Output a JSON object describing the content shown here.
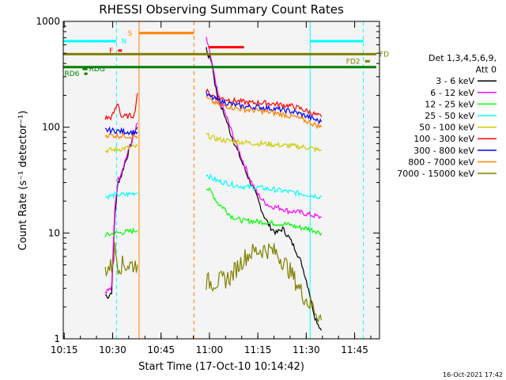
{
  "chart_data": {
    "type": "line",
    "title": "RHESSI Observing Summary Count Rates",
    "xlabel": "Start Time (17-Oct-10 10:14:42)",
    "ylabel": "Count Rate (s⁻¹ detector⁻¹)",
    "x_range_minutes": [
      0,
      98
    ],
    "x_tick_labels": [
      "10:15",
      "10:30",
      "10:45",
      "11:00",
      "11:15",
      "11:30",
      "11:45"
    ],
    "x_tick_minutes": [
      0.3,
      15.3,
      30.3,
      45.3,
      60.3,
      75.3,
      90.3
    ],
    "ylim": [
      1,
      1000
    ],
    "yscale": "log",
    "y_tick_labels": [
      "1",
      "10",
      "100",
      "1000"
    ],
    "legend_header": [
      "Det 1,3,4,5,6,9,",
      "Att 0"
    ],
    "legend_position": "right",
    "series": [
      {
        "name": "3 - 6 keV",
        "color": "#000000",
        "segments": [
          [
            [
              13,
              2.6
            ],
            [
              14,
              2.5
            ],
            [
              15,
              2.8
            ],
            [
              16,
              15
            ],
            [
              17,
              30
            ],
            [
              18,
              35
            ],
            [
              19,
              45
            ],
            [
              20,
              55
            ],
            [
              21,
              70
            ],
            [
              22,
              90
            ],
            [
              23,
              100
            ]
          ],
          [
            [
              44.3,
              560
            ],
            [
              45,
              470
            ],
            [
              46,
              420
            ],
            [
              47,
              260
            ],
            [
              48,
              180
            ],
            [
              50,
              130
            ],
            [
              52,
              85
            ],
            [
              54,
              60
            ],
            [
              56,
              42
            ],
            [
              58,
              30
            ],
            [
              60,
              22
            ],
            [
              62,
              15
            ],
            [
              64,
              11.5
            ],
            [
              66,
              10
            ],
            [
              68,
              11
            ],
            [
              70,
              9
            ],
            [
              72,
              7
            ],
            [
              74,
              5
            ],
            [
              76,
              3
            ],
            [
              78,
              1.6
            ],
            [
              80,
              1.2
            ]
          ]
        ]
      },
      {
        "name": "6 - 12 keV",
        "color": "#ff00ff",
        "segments": [
          [
            [
              13,
              2.8
            ],
            [
              15,
              3
            ],
            [
              16,
              18
            ],
            [
              17,
              32
            ],
            [
              18,
              38
            ],
            [
              20,
              58
            ],
            [
              22,
              85
            ],
            [
              23,
              110
            ]
          ],
          [
            [
              44.3,
              700
            ],
            [
              45,
              560
            ],
            [
              46,
              420
            ],
            [
              47,
              280
            ],
            [
              48,
              200
            ],
            [
              50,
              140
            ],
            [
              52,
              95
            ],
            [
              54,
              65
            ],
            [
              56,
              45
            ],
            [
              58,
              32
            ],
            [
              60,
              24
            ],
            [
              62,
              20
            ],
            [
              64,
              18
            ],
            [
              66,
              17.5
            ],
            [
              68,
              17
            ],
            [
              70,
              16
            ],
            [
              72,
              16
            ],
            [
              74,
              15.5
            ],
            [
              76,
              15
            ],
            [
              78,
              14.5
            ],
            [
              80,
              14
            ]
          ]
        ]
      },
      {
        "name": "12 - 25 keV",
        "color": "#00ff00",
        "segments": [
          [
            [
              13,
              9.5
            ],
            [
              15,
              9.8
            ],
            [
              17,
              10
            ],
            [
              19,
              10.2
            ],
            [
              21,
              10.4
            ],
            [
              23,
              10.6
            ]
          ],
          [
            [
              44.3,
              27
            ],
            [
              46,
              24
            ],
            [
              48,
              19
            ],
            [
              50,
              17
            ],
            [
              52,
              14.5
            ],
            [
              54,
              13.5
            ],
            [
              56,
              13
            ],
            [
              58,
              13
            ],
            [
              60,
              12.8
            ],
            [
              62,
              12.7
            ],
            [
              64,
              12.5
            ],
            [
              66,
              12.3
            ],
            [
              68,
              12.2
            ],
            [
              70,
              12
            ],
            [
              72,
              11.5
            ],
            [
              74,
              11.2
            ],
            [
              76,
              11
            ],
            [
              78,
              10.5
            ],
            [
              80,
              10
            ]
          ]
        ]
      },
      {
        "name": "25 - 50 keV",
        "color": "#00ffff",
        "segments": [
          [
            [
              13,
              22
            ],
            [
              15,
              22.5
            ],
            [
              17,
              23
            ],
            [
              19,
              23
            ],
            [
              21,
              23.5
            ],
            [
              23,
              24
            ]
          ],
          [
            [
              44.3,
              36
            ],
            [
              46,
              33
            ],
            [
              48,
              31
            ],
            [
              50,
              30
            ],
            [
              52,
              29
            ],
            [
              54,
              28
            ],
            [
              56,
              27.5
            ],
            [
              58,
              27
            ],
            [
              60,
              27
            ],
            [
              62,
              26.5
            ],
            [
              64,
              26
            ],
            [
              66,
              25.5
            ],
            [
              68,
              25
            ],
            [
              70,
              24.5
            ],
            [
              72,
              24
            ],
            [
              74,
              23.5
            ],
            [
              76,
              23
            ],
            [
              78,
              22.5
            ],
            [
              80,
              22
            ]
          ]
        ]
      },
      {
        "name": "50 - 100 keV",
        "color": "#cccc00",
        "segments": [
          [
            [
              13,
              60
            ],
            [
              15,
              61
            ],
            [
              17,
              62
            ],
            [
              19,
              63
            ],
            [
              21,
              64
            ],
            [
              23,
              66
            ]
          ],
          [
            [
              44.3,
              85
            ],
            [
              46,
              80
            ],
            [
              48,
              77
            ],
            [
              50,
              75
            ],
            [
              52,
              74
            ],
            [
              54,
              73
            ],
            [
              56,
              72
            ],
            [
              58,
              71
            ],
            [
              60,
              70
            ],
            [
              62,
              70
            ],
            [
              64,
              69
            ],
            [
              66,
              68
            ],
            [
              68,
              67
            ],
            [
              70,
              67
            ],
            [
              72,
              66
            ],
            [
              74,
              65
            ],
            [
              76,
              64
            ],
            [
              78,
              62
            ],
            [
              80,
              60
            ]
          ]
        ]
      },
      {
        "name": "100 - 300 keV",
        "color": "#ff0000",
        "segments": [
          [
            [
              13,
              122
            ],
            [
              15,
              124
            ],
            [
              17,
              170
            ],
            [
              18,
              125
            ],
            [
              20,
              127
            ],
            [
              22,
              130
            ],
            [
              23,
              210
            ]
          ],
          [
            [
              44.3,
              220
            ],
            [
              46,
              200
            ],
            [
              48,
              190
            ],
            [
              50,
              185
            ],
            [
              52,
              180
            ],
            [
              54,
              176
            ],
            [
              56,
              173
            ],
            [
              58,
              170
            ],
            [
              60,
              170
            ],
            [
              62,
              170
            ],
            [
              64,
              168
            ],
            [
              66,
              165
            ],
            [
              68,
              162
            ],
            [
              70,
              160
            ],
            [
              72,
              155
            ],
            [
              74,
              148
            ],
            [
              76,
              140
            ],
            [
              78,
              132
            ],
            [
              80,
              125
            ]
          ]
        ]
      },
      {
        "name": "300 - 800 keV",
        "color": "#0000ff",
        "segments": [
          [
            [
              13,
              94
            ],
            [
              15,
              93
            ],
            [
              17,
              92
            ],
            [
              19,
              91
            ],
            [
              21,
              90
            ],
            [
              23,
              90
            ]
          ],
          [
            [
              44.3,
              205
            ],
            [
              46,
              190
            ],
            [
              48,
              180
            ],
            [
              50,
              172
            ],
            [
              52,
              165
            ],
            [
              54,
              160
            ],
            [
              56,
              157
            ],
            [
              58,
              155
            ],
            [
              60,
              155
            ],
            [
              62,
              153
            ],
            [
              64,
              151
            ],
            [
              66,
              148
            ],
            [
              68,
              145
            ],
            [
              70,
              142
            ],
            [
              72,
              138
            ],
            [
              74,
              132
            ],
            [
              76,
              125
            ],
            [
              78,
              118
            ],
            [
              80,
              112
            ]
          ]
        ]
      },
      {
        "name": "800 - 7000 keV",
        "color": "#ff8000",
        "segments": [
          [
            [
              13,
              84
            ],
            [
              15,
              84
            ],
            [
              17,
              83
            ],
            [
              19,
              83
            ],
            [
              21,
              82
            ],
            [
              23,
              82
            ]
          ],
          [
            [
              44.3,
              190
            ],
            [
              46,
              175
            ],
            [
              48,
              165
            ],
            [
              50,
              160
            ],
            [
              52,
              155
            ],
            [
              54,
              150
            ],
            [
              56,
              147
            ],
            [
              58,
              145
            ],
            [
              60,
              143
            ],
            [
              62,
              141
            ],
            [
              64,
              138
            ],
            [
              66,
              135
            ],
            [
              68,
              132
            ],
            [
              70,
              128
            ],
            [
              72,
              124
            ],
            [
              74,
              118
            ],
            [
              76,
              112
            ],
            [
              78,
              106
            ],
            [
              80,
              100
            ]
          ]
        ]
      },
      {
        "name": "7000 - 15000 keV",
        "color": "#808000",
        "segments": [
          [
            [
              13,
              4.6
            ],
            [
              15,
              4.8
            ],
            [
              16,
              7
            ],
            [
              17,
              5
            ],
            [
              19,
              5
            ],
            [
              21,
              5
            ],
            [
              23,
              5
            ]
          ],
          [
            [
              44.3,
              3.5
            ],
            [
              46,
              3.4
            ],
            [
              48,
              3.5
            ],
            [
              50,
              3.6
            ],
            [
              52,
              3.9
            ],
            [
              54,
              4.8
            ],
            [
              56,
              5.8
            ],
            [
              58,
              6.5
            ],
            [
              60,
              6.8
            ],
            [
              62,
              7
            ],
            [
              64,
              6.9
            ],
            [
              66,
              6.5
            ],
            [
              68,
              5.5
            ],
            [
              70,
              4.5
            ],
            [
              72,
              3.5
            ],
            [
              74,
              2.7
            ],
            [
              76,
              2.2
            ],
            [
              78,
              1.9
            ],
            [
              80,
              1.5
            ]
          ]
        ]
      }
    ],
    "vertical_markers": [
      {
        "minute": 0,
        "color": "#00ffff",
        "style": "solid"
      },
      {
        "minute": 16.5,
        "color": "#00ffff",
        "style": "dashed"
      },
      {
        "minute": 23.5,
        "color": "#ff8000",
        "style": "solid"
      },
      {
        "minute": 40.5,
        "color": "#ff8000",
        "style": "dashed"
      },
      {
        "minute": 76.5,
        "color": "#00ffff",
        "style": "solid"
      },
      {
        "minute": 93,
        "color": "#00ffff",
        "style": "dashed"
      }
    ],
    "flag_bars": [
      {
        "label": "N",
        "color": "#00ffff",
        "x0": 0,
        "x1": 16.5,
        "y": 650,
        "label_at": 18,
        "label_side": "right"
      },
      {
        "label": "",
        "color": "#00ffff",
        "x0": 76.5,
        "x1": 93,
        "y": 650,
        "label_at": null,
        "label_side": ""
      },
      {
        "label": "S",
        "color": "#ff8000",
        "x0": 23.5,
        "x1": 40.5,
        "y": 775,
        "label_at": 20,
        "label_side": "right"
      },
      {
        "label": "F",
        "color": "#ff0000",
        "x0": 17,
        "x1": 18.2,
        "y": 530,
        "label_at": 15.5,
        "label_side": "left"
      },
      {
        "label": "",
        "color": "#ff0000",
        "x0": 45,
        "x1": 56,
        "y": 570,
        "label_at": null,
        "label_side": ""
      },
      {
        "label": "FD",
        "color": "#808000",
        "x0": 0,
        "x1": 97,
        "y": 490,
        "label_at": 98,
        "label_side": "right"
      },
      {
        "label": "FD2",
        "color": "#808000",
        "x0": 93.5,
        "x1": 95,
        "y": 420,
        "label_at": 92,
        "label_side": "left"
      },
      {
        "label": "",
        "color": "#008000",
        "x0": 0,
        "x1": 97,
        "y": 370,
        "label_at": null,
        "label_side": ""
      },
      {
        "label": "RDG",
        "color": "#008000",
        "x0": 6,
        "x1": 7.5,
        "y": 355,
        "label_at": 8,
        "label_side": "right"
      },
      {
        "label": "RD6",
        "color": "#008000",
        "x0": 6.5,
        "x1": 7.5,
        "y": 320,
        "label_at": 5,
        "label_side": "left"
      }
    ]
  },
  "footer": {
    "timestamp": "16-Oct-2021 17:42"
  }
}
